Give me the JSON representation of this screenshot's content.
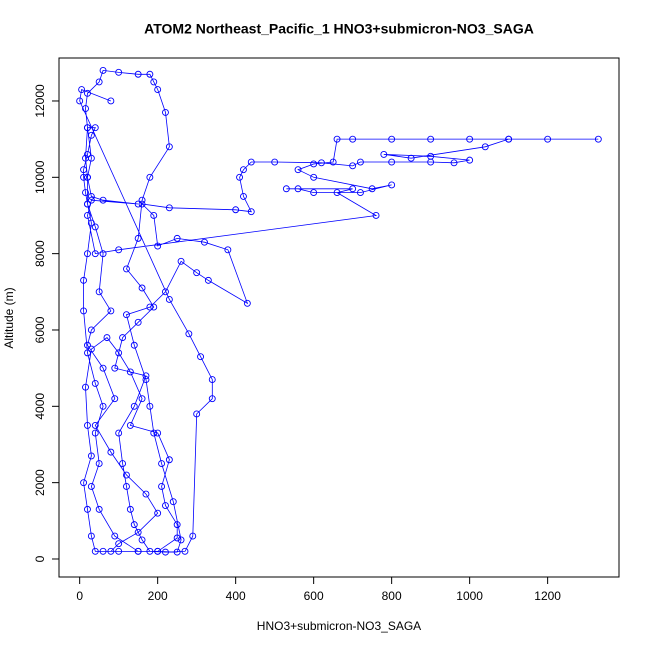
{
  "chart_data": {
    "type": "line",
    "markers": true,
    "title": "ATOM2 Northeast_Pacific_1 HNO3+submicron-NO3_SAGA",
    "xlabel": "HNO3+submicron-NO3_SAGA",
    "ylabel": "Altitude (m)",
    "xlim": [
      -53,
      1383
    ],
    "ylim": [
      -472,
      13126
    ],
    "xticks": [
      0,
      200,
      400,
      600,
      800,
      1000,
      1200
    ],
    "yticks": [
      0,
      2000,
      4000,
      6000,
      8000,
      10000,
      12000
    ],
    "x": [
      60,
      100,
      150,
      200,
      250,
      260,
      240,
      210,
      190,
      180,
      170,
      140,
      120,
      180,
      220,
      260,
      300,
      330,
      430,
      380,
      320,
      250,
      200,
      190,
      160,
      230,
      400,
      440,
      420,
      410,
      420,
      440,
      500,
      620,
      700,
      720,
      800,
      900,
      960,
      1000,
      900,
      780,
      850,
      1040,
      1100,
      1200,
      1330,
      1100,
      1000,
      900,
      800,
      700,
      660,
      650,
      600,
      560,
      600,
      750,
      800,
      720,
      600,
      560,
      530,
      700,
      660,
      760,
      100,
      40,
      20,
      30,
      150,
      60,
      30,
      20,
      15,
      20,
      40,
      30,
      20,
      10,
      10,
      15,
      20,
      40,
      60,
      50,
      80,
      30,
      20,
      60,
      90,
      40,
      80,
      120,
      170,
      200,
      150,
      100,
      80,
      40,
      30,
      20,
      10,
      30,
      20,
      15,
      30,
      70,
      100,
      130,
      160,
      130,
      200,
      230,
      210,
      220,
      250,
      250,
      200,
      150,
      90,
      50,
      30,
      50,
      40,
      60,
      40,
      20,
      10,
      10,
      20,
      30,
      20,
      20,
      30,
      20,
      15,
      20,
      50,
      60,
      100,
      150,
      180,
      190,
      200,
      220,
      230,
      180,
      160,
      150,
      120,
      160,
      190,
      150,
      110,
      90,
      170,
      140,
      100,
      110,
      120,
      130,
      140,
      160,
      180,
      220,
      270,
      290,
      300,
      340,
      340,
      310,
      280,
      230,
      0,
      5,
      80
    ],
    "series": [
      {
        "color": "#0000ff",
        "values": [
          200,
          200,
          200,
          200,
          180,
          500,
          1500,
          2500,
          3300,
          4000,
          4700,
          5600,
          6400,
          6600,
          7000,
          7800,
          7500,
          7300,
          6700,
          8100,
          8300,
          8400,
          8200,
          9000,
          9300,
          9200,
          9150,
          9100,
          9500,
          10000,
          10200,
          10400,
          10400,
          10380,
          10300,
          10400,
          10400,
          10400,
          10380,
          10450,
          10550,
          10600,
          10500,
          10800,
          11000,
          11000,
          11000,
          11000,
          11000,
          11000,
          11000,
          11000,
          11000,
          10400,
          10350,
          10200,
          10000,
          9700,
          9800,
          9600,
          9600,
          9700,
          9700,
          9700,
          9600,
          9000,
          8100,
          8000,
          9000,
          9400,
          9300,
          9400,
          9500,
          10000,
          10500,
          11300,
          11300,
          11100,
          10600,
          10200,
          10000,
          9600,
          9300,
          8700,
          8000,
          7000,
          6500,
          6000,
          5600,
          5000,
          4200,
          3500,
          2800,
          2200,
          1700,
          1200,
          700,
          400,
          200,
          200,
          600,
          1300,
          2000,
          2700,
          3500,
          4500,
          5500,
          5800,
          5400,
          4900,
          4200,
          3500,
          3300,
          2600,
          1900,
          1400,
          900,
          550,
          200,
          200,
          600,
          1300,
          1900,
          2500,
          3300,
          4000,
          4600,
          5400,
          6500,
          7300,
          8000,
          8800,
          9300,
          10000,
          10500,
          11300,
          11800,
          12200,
          12500,
          12800,
          12750,
          12700,
          12700,
          12500,
          12300,
          11700,
          10800,
          10000,
          9400,
          8400,
          7600,
          7100,
          6600,
          6200,
          5800,
          5000,
          4800,
          4000,
          3300,
          2500,
          1900,
          1300,
          900,
          500,
          200,
          180,
          200,
          600,
          3800,
          4200,
          4700,
          5300,
          5900,
          6800,
          12000,
          12300,
          12000
        ]
      }
    ]
  }
}
